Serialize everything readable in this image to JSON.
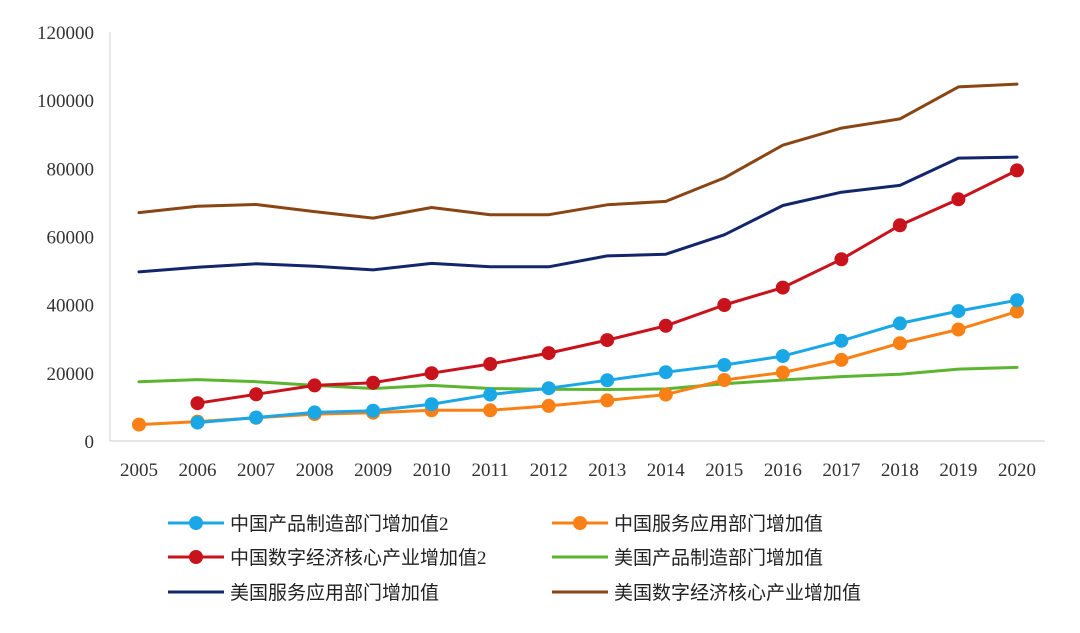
{
  "chart_data": {
    "type": "line",
    "title": "",
    "xlabel": "",
    "ylabel": "",
    "ylim": [
      0,
      120000
    ],
    "yticks": [
      0,
      20000,
      40000,
      60000,
      80000,
      100000,
      120000
    ],
    "ytick_labels": [
      "0",
      "20000",
      "40000",
      "60000",
      "80000",
      "100000",
      "120000"
    ],
    "categories": [
      "2005",
      "2006",
      "2007",
      "2008",
      "2009",
      "2010",
      "2011",
      "2012",
      "2013",
      "2014",
      "2015",
      "2016",
      "2017",
      "2018",
      "2019",
      "2020"
    ],
    "grid": false,
    "legend_position": "bottom",
    "series": [
      {
        "name": "中国产品制造部门增加值2",
        "color": "#1aa7e6",
        "marker": true,
        "values": [
          null,
          5400,
          6900,
          8400,
          8900,
          10800,
          13600,
          15500,
          17800,
          20200,
          22300,
          24900,
          29400,
          34500,
          38100,
          41300
        ]
      },
      {
        "name": "中国服务应用部门增加值",
        "color": "#f98014",
        "marker": true,
        "values": [
          4800,
          5700,
          6800,
          7900,
          8300,
          9000,
          9000,
          10300,
          11900,
          13600,
          17900,
          20100,
          23800,
          28700,
          32700,
          38000
        ]
      },
      {
        "name": "中国数字经济核心产业增加值2",
        "color": "#c8121c",
        "marker": true,
        "values": [
          null,
          11100,
          13700,
          16300,
          17100,
          19900,
          22600,
          25800,
          29600,
          33800,
          39900,
          45000,
          53300,
          63300,
          70900,
          79400
        ]
      },
      {
        "name": "美国产品制造部门增加值",
        "color": "#5cb531",
        "marker": false,
        "values": [
          17400,
          18000,
          17400,
          16300,
          15400,
          16300,
          15400,
          15200,
          15100,
          15300,
          16800,
          17900,
          18900,
          19600,
          21100,
          21600
        ]
      },
      {
        "name": "美国服务应用部门增加值",
        "color": "#13256b",
        "marker": false,
        "values": [
          49600,
          51000,
          52000,
          51300,
          50200,
          52100,
          51100,
          51100,
          54300,
          54800,
          60500,
          69100,
          73000,
          75000,
          83000,
          83300
        ]
      },
      {
        "name": "美国数字经济核心产业增加值",
        "color": "#8a4514",
        "marker": false,
        "values": [
          67000,
          68900,
          69400,
          67300,
          65400,
          68500,
          66400,
          66400,
          69300,
          70300,
          77200,
          86800,
          91800,
          94500,
          103900,
          104700
        ]
      }
    ]
  }
}
